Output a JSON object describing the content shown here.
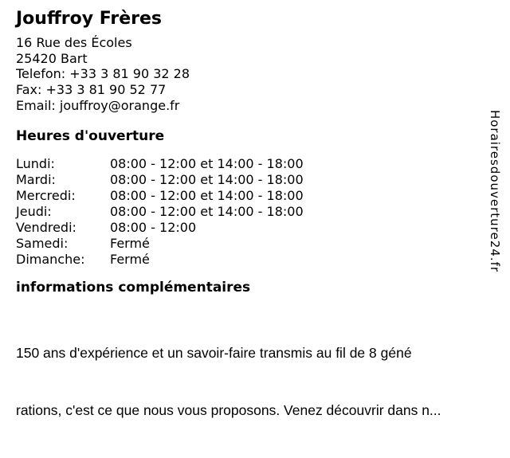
{
  "business": {
    "name": "Jouffroy Frères",
    "contact_lines": [
      "16 Rue des Écoles",
      "25420 Bart",
      "Telefon: +33 3 81 90 32 28",
      "Fax: +33 3 81 90 52 77",
      "Email: jouffroy@orange.fr"
    ]
  },
  "hours": {
    "heading": "Heures d'ouverture",
    "rows": [
      {
        "day": "Lundi:",
        "time": "08:00 - 12:00 et 14:00 - 18:00"
      },
      {
        "day": "Mardi:",
        "time": "08:00 - 12:00 et 14:00 - 18:00"
      },
      {
        "day": "Mercredi:",
        "time": "08:00 - 12:00 et 14:00 - 18:00"
      },
      {
        "day": "Jeudi:",
        "time": "08:00 - 12:00 et 14:00 - 18:00"
      },
      {
        "day": "Vendredi:",
        "time": "08:00 - 12:00"
      },
      {
        "day": "Samedi:",
        "time": "Fermé"
      },
      {
        "day": "Dimanche:",
        "time": "Fermé"
      }
    ]
  },
  "info": {
    "heading": "informations complémentaires",
    "lines": [
      "150 ans d'expérience et un savoir-faire transmis au fil de 8 géné",
      "rations, c'est ce que nous vous proposons. Venez découvrir dans n..."
    ]
  },
  "watermark": {
    "text": "Horairesdouverture24.fr"
  },
  "colors": {
    "text": "#000000",
    "background": "#ffffff"
  }
}
